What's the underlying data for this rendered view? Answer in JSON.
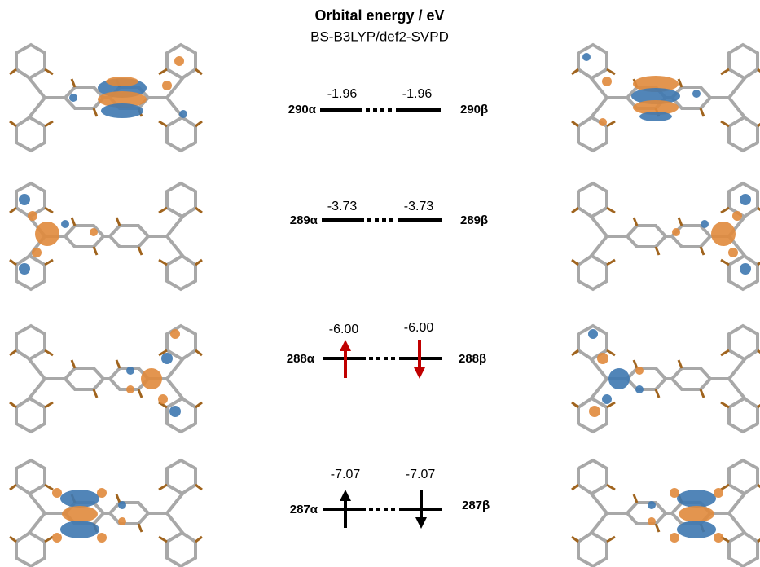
{
  "header": {
    "title": "Orbital energy / eV",
    "subtitle": "BS-B3LYP/def2-SVPD"
  },
  "levels": [
    {
      "alpha_label": "290α",
      "beta_label": "290β",
      "alpha_energy": "-1.96",
      "beta_energy": "-1.96"
    },
    {
      "alpha_label": "289α",
      "beta_label": "289β",
      "alpha_energy": "-3.73",
      "beta_energy": "-3.73"
    },
    {
      "alpha_label": "288α",
      "beta_label": "288β",
      "alpha_energy": "-6.00",
      "beta_energy": "-6.00"
    },
    {
      "alpha_label": "287α",
      "beta_label": "287β",
      "alpha_energy": "-7.07",
      "beta_energy": "-7.07"
    }
  ]
}
